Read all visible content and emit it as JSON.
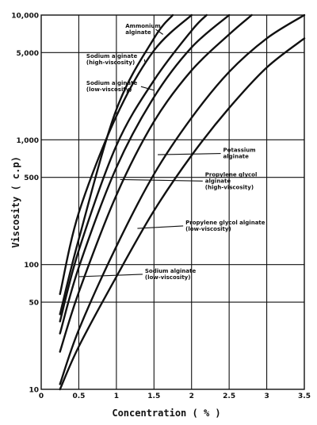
{
  "chart_data": {
    "type": "line",
    "xlabel": "Concentration ( % )",
    "ylabel": "Viscosity ( c.p)",
    "xlim": [
      0,
      3.5
    ],
    "ylim": [
      10,
      10000
    ],
    "y_scale": "log",
    "grid": true,
    "x_ticks": [
      "0",
      "0.5",
      "1",
      "1.5",
      "2",
      "2.5",
      "3",
      "3.5"
    ],
    "y_ticks": [
      "10",
      "50",
      "100",
      "500",
      "1,000",
      "5,000",
      "10,000"
    ],
    "series": [
      {
        "name": "Ammonium alginate",
        "x": [
          0.25,
          0.5,
          1.0,
          1.5,
          1.75
        ],
        "y": [
          40,
          160,
          1750,
          6500,
          10000
        ]
      },
      {
        "name": "Sodium alginate (high-viscosity)",
        "x": [
          0.25,
          0.5,
          1.0,
          1.5,
          2.0
        ],
        "y": [
          58,
          260,
          1550,
          5200,
          10000
        ]
      },
      {
        "name": "Sodium alginate (low-viscosity)",
        "x": [
          0.25,
          0.5,
          1.0,
          1.5,
          2.0,
          2.2
        ],
        "y": [
          35,
          130,
          900,
          3000,
          7500,
          10000
        ]
      },
      {
        "name": "",
        "x": [
          0.25,
          0.5,
          1.0,
          1.5,
          2.0,
          2.5
        ],
        "y": [
          28,
          95,
          600,
          2200,
          5500,
          10000
        ]
      },
      {
        "name": "Potassium alginate",
        "x": [
          0.25,
          0.5,
          1.0,
          1.5,
          2.0,
          2.5,
          2.8
        ],
        "y": [
          20,
          60,
          360,
          1400,
          3600,
          7000,
          10000
        ]
      },
      {
        "name": "Propylene glycol alginate (high-viscosity)",
        "x": [
          0.25,
          0.5,
          1.0,
          1.5,
          2.0,
          2.5,
          3.0,
          3.5
        ],
        "y": [
          11,
          30,
          140,
          530,
          1500,
          3500,
          6500,
          10000
        ]
      },
      {
        "name": "Propylene glycol alginate (low-viscosity)",
        "x": [
          0.25,
          0.5,
          1.0,
          1.5,
          2.0,
          2.5,
          3.0,
          3.5
        ],
        "y": [
          10,
          22,
          80,
          270,
          750,
          1800,
          3800,
          6500
        ]
      }
    ],
    "annotations": [
      {
        "lines": [
          "Ammonium",
          "alginate"
        ],
        "tx": 1.12,
        "ty": 7900,
        "ax": 1.62,
        "ay": 7000
      },
      {
        "lines": [
          "Sodium alginate",
          "(high-viscosity)"
        ],
        "tx": 0.6,
        "ty": 4550,
        "ax": 1.38,
        "ay": 4200
      },
      {
        "lines": [
          "Sodium alginate",
          "(low-viscosity)"
        ],
        "tx": 0.6,
        "ty": 2750,
        "ax": 1.5,
        "ay": 2500
      },
      {
        "lines": [
          "Potassium",
          "alginate"
        ],
        "tx": 2.42,
        "ty": 800,
        "ax": 1.55,
        "ay": 760
      },
      {
        "lines": [
          "Propylene glycol",
          "alginate",
          "(high-viscosity)"
        ],
        "tx": 2.18,
        "ty": 510,
        "ax": 1.05,
        "ay": 480
      },
      {
        "lines": [
          "Propylene glycol alginate",
          "(low-viscosity)"
        ],
        "tx": 1.92,
        "ty": 210,
        "ax": 1.28,
        "ay": 195
      },
      {
        "lines": [
          "Sodium alginate",
          "(low-viscosity)"
        ],
        "tx": 1.38,
        "ty": 86,
        "ax": 0.5,
        "ay": 80
      }
    ]
  }
}
